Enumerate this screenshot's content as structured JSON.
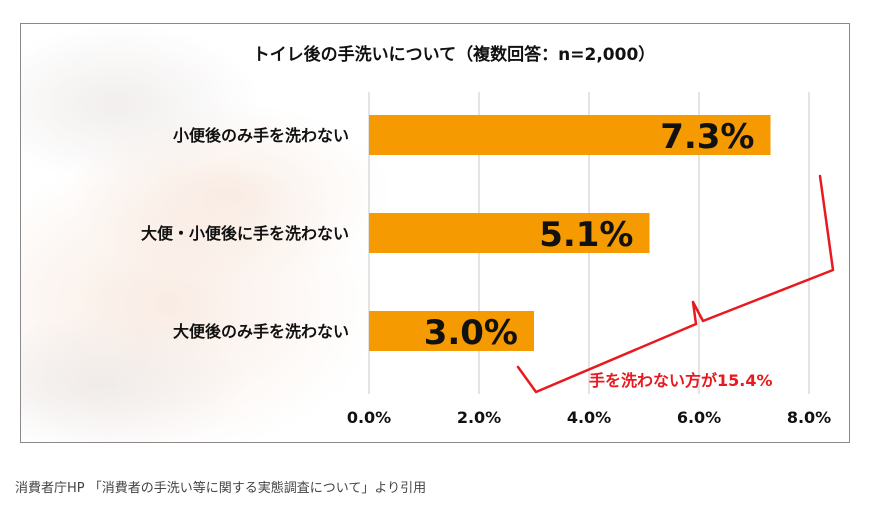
{
  "chart_data": {
    "type": "bar",
    "orientation": "horizontal",
    "title": "トイレ後の手洗いについて（複数回答：n=2,000）",
    "categories": [
      "小便後のみ手を洗わない",
      "大便・小便後に手を洗わない",
      "大便後のみ手を洗わない"
    ],
    "values": [
      7.3,
      5.1,
      3.0
    ],
    "value_labels": [
      "7.3%",
      "5.1%",
      "3.0%"
    ],
    "xlim": [
      0,
      8
    ],
    "x_ticks": [
      "0.0%",
      "2.0%",
      "4.0%",
      "6.0%",
      "8.0%"
    ],
    "grid": true,
    "annotation": "手を洗わない方が15.4%",
    "colors": {
      "bar": "#f59a00",
      "annotation": "#e8191f",
      "grid": "#c8c8c8",
      "text": "#111111"
    }
  },
  "caption": "消費者庁HP 「消費者の手洗い等に関する実態調査について」より引用"
}
